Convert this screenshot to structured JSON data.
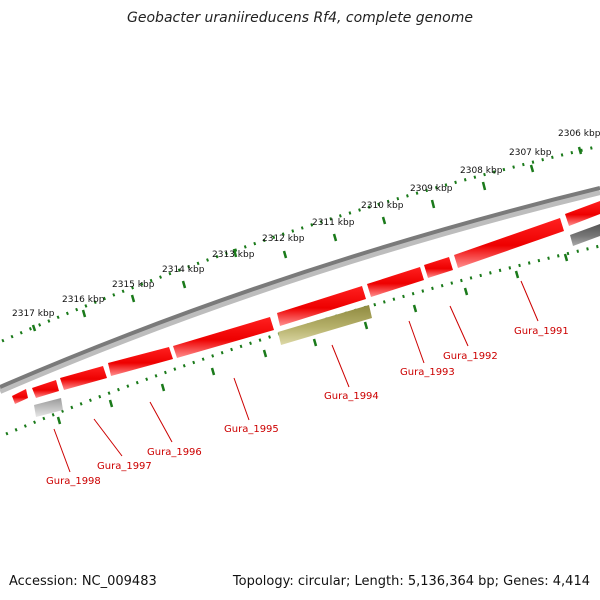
{
  "title": "Geobacter uraniireducens Rf4, complete genome",
  "accession": "Accession: NC_009483",
  "summary": "Topology: circular; Length: 5,136,364 bp; Genes: 4,414",
  "colors": {
    "gene_red": "#ff0000",
    "gene_olive": "#b8b46a",
    "gene_grey": "#888888",
    "gene_lightgrey": "#c8c8c8",
    "backbone": "#777777",
    "ticks": "#1a7a1a",
    "labels": "#cc0000"
  },
  "scale_labels": [
    "2317 kbp",
    "2316 kbp",
    "2315 kbp",
    "2314 kbp",
    "2313 kbp",
    "2312 kbp",
    "2311 kbp",
    "2310 kbp",
    "2309 kbp",
    "2308 kbp",
    "2307 kbp",
    "2306 kbp"
  ],
  "gene_labels": [
    "Gura_1991",
    "Gura_1992",
    "Gura_1993",
    "Gura_1994",
    "Gura_1995",
    "Gura_1996",
    "Gura_1997",
    "Gura_1998"
  ]
}
